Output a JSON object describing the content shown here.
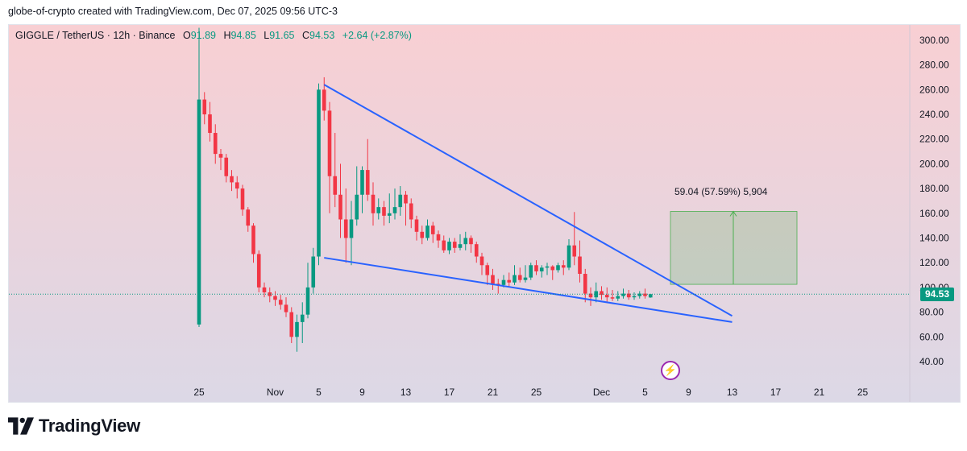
{
  "header": {
    "caption": "globe-of-crypto created with TradingView.com, Dec 07, 2025 09:56 UTC-3"
  },
  "legend": {
    "symbol": "GIGGLE / TetherUS · 12h · Binance",
    "open_label": "O",
    "open_value": "91.89",
    "high_label": "H",
    "high_value": "94.85",
    "low_label": "L",
    "low_value": "91.65",
    "close_label": "C",
    "close_value": "94.53",
    "change": "+2.64 (+2.87%)"
  },
  "price_tag": "94.53",
  "measure": {
    "label": "59.04 (57.59%) 5,904",
    "from": 102.5,
    "to": 161.5
  },
  "footer": {
    "brand": "TradingView"
  },
  "colors": {
    "up": "#089981",
    "down": "#f23645",
    "trendline": "#2962ff",
    "measure": "#4caf50"
  },
  "chart_data": {
    "type": "candlestick",
    "title": "GIGGLE / TetherUS · 12h · Binance",
    "ylim": [
      30,
      310
    ],
    "y_ticks": [
      "40.00",
      "60.00",
      "80.00",
      "100.00",
      "120.00",
      "140.00",
      "160.00",
      "180.00",
      "200.00",
      "220.00",
      "240.00",
      "260.00",
      "280.00",
      "300.00"
    ],
    "x_ticks": [
      {
        "label": "25",
        "index": 0
      },
      {
        "label": "Nov",
        "index": 14
      },
      {
        "label": "5",
        "index": 22
      },
      {
        "label": "9",
        "index": 30
      },
      {
        "label": "13",
        "index": 38
      },
      {
        "label": "17",
        "index": 46
      },
      {
        "label": "21",
        "index": 54
      },
      {
        "label": "25",
        "index": 62
      },
      {
        "label": "Dec",
        "index": 74
      },
      {
        "label": "5",
        "index": 82
      },
      {
        "label": "9",
        "index": 90
      },
      {
        "label": "13",
        "index": 98
      },
      {
        "label": "17",
        "index": 106
      },
      {
        "label": "21",
        "index": 114
      },
      {
        "label": "25",
        "index": 122
      }
    ],
    "candles": [
      [
        70,
        252,
        310,
        68
      ],
      [
        252,
        240,
        258,
        232
      ],
      [
        240,
        225,
        250,
        218
      ],
      [
        225,
        208,
        232,
        200
      ],
      [
        208,
        205,
        212,
        195
      ],
      [
        205,
        190,
        208,
        185
      ],
      [
        190,
        185,
        195,
        178
      ],
      [
        185,
        180,
        190,
        172
      ],
      [
        180,
        163,
        183,
        158
      ],
      [
        163,
        150,
        165,
        145
      ],
      [
        150,
        127,
        152,
        120
      ],
      [
        127,
        100,
        130,
        96
      ],
      [
        100,
        96,
        104,
        92
      ],
      [
        96,
        93,
        100,
        88
      ],
      [
        93,
        90,
        97,
        85
      ],
      [
        90,
        86,
        94,
        82
      ],
      [
        86,
        80,
        92,
        76
      ],
      [
        80,
        60,
        84,
        55
      ],
      [
        60,
        72,
        78,
        48
      ],
      [
        72,
        78,
        88,
        55
      ],
      [
        78,
        100,
        120,
        75
      ],
      [
        100,
        125,
        132,
        95
      ],
      [
        125,
        260,
        265,
        118
      ],
      [
        260,
        243,
        270,
        235
      ],
      [
        243,
        190,
        250,
        160
      ],
      [
        190,
        175,
        225,
        165
      ],
      [
        175,
        155,
        200,
        140
      ],
      [
        155,
        140,
        180,
        120
      ],
      [
        140,
        155,
        170,
        118
      ],
      [
        155,
        175,
        198,
        150
      ],
      [
        175,
        195,
        198,
        160
      ],
      [
        195,
        175,
        220,
        170
      ],
      [
        175,
        160,
        185,
        150
      ],
      [
        160,
        165,
        172,
        155
      ],
      [
        165,
        158,
        170,
        150
      ],
      [
        158,
        160,
        176,
        152
      ],
      [
        160,
        165,
        180,
        155
      ],
      [
        165,
        175,
        182,
        158
      ],
      [
        175,
        168,
        178,
        150
      ],
      [
        168,
        155,
        172,
        148
      ],
      [
        155,
        145,
        158,
        138
      ],
      [
        145,
        140,
        150,
        135
      ],
      [
        140,
        150,
        155,
        138
      ],
      [
        150,
        143,
        153,
        136
      ],
      [
        143,
        138,
        146,
        132
      ],
      [
        138,
        130,
        142,
        128
      ],
      [
        130,
        137,
        140,
        127
      ],
      [
        137,
        132,
        140,
        128
      ],
      [
        132,
        135,
        143,
        130
      ],
      [
        135,
        140,
        145,
        130
      ],
      [
        140,
        135,
        142,
        128
      ],
      [
        135,
        125,
        137,
        120
      ],
      [
        125,
        118,
        128,
        110
      ],
      [
        118,
        110,
        120,
        102
      ],
      [
        110,
        103,
        115,
        98
      ],
      [
        103,
        102,
        107,
        95
      ],
      [
        102,
        106,
        110,
        100
      ],
      [
        106,
        104,
        112,
        100
      ],
      [
        104,
        110,
        118,
        102
      ],
      [
        110,
        106,
        116,
        104
      ],
      [
        106,
        108,
        118,
        104
      ],
      [
        108,
        118,
        120,
        106
      ],
      [
        118,
        113,
        122,
        110
      ],
      [
        113,
        116,
        118,
        108
      ],
      [
        116,
        117,
        120,
        110
      ],
      [
        117,
        114,
        118,
        106
      ],
      [
        114,
        118,
        120,
        112
      ],
      [
        118,
        116,
        122,
        110
      ],
      [
        116,
        134,
        139,
        114
      ],
      [
        134,
        125,
        161,
        118
      ],
      [
        125,
        111,
        138,
        104
      ],
      [
        111,
        95,
        115,
        88
      ],
      [
        95,
        92,
        100,
        85
      ],
      [
        92,
        97,
        104,
        88
      ],
      [
        97,
        94,
        101,
        90
      ],
      [
        94,
        92,
        100,
        88
      ],
      [
        92,
        91,
        98,
        89
      ],
      [
        91,
        93,
        97,
        89
      ],
      [
        93,
        95,
        99,
        91
      ],
      [
        95,
        92,
        98,
        90
      ],
      [
        92,
        93,
        96,
        90
      ],
      [
        93,
        95,
        97,
        91
      ],
      [
        95,
        93,
        99,
        91
      ],
      [
        91.89,
        94.53,
        94.85,
        91.65
      ]
    ],
    "trendlines": [
      {
        "from": {
          "index": 23,
          "price": 264
        },
        "to": {
          "index": 98,
          "price": 77
        }
      },
      {
        "from": {
          "index": 23,
          "price": 124
        },
        "to": {
          "index": 98,
          "price": 72
        }
      }
    ]
  }
}
